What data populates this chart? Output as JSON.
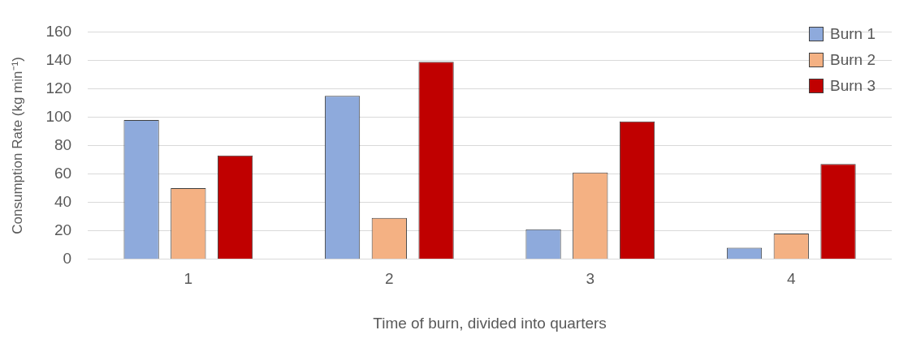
{
  "chart_data": {
    "type": "bar",
    "xlabel": "Time of burn, divided into quarters",
    "ylabel": "Consumption Rate (kg min⁻¹)",
    "categories": [
      "1",
      "2",
      "3",
      "4"
    ],
    "series": [
      {
        "name": "Burn 1",
        "color": "#8eaadc",
        "values": [
          98,
          115,
          21,
          8
        ]
      },
      {
        "name": "Burn 2",
        "color": "#f4b183",
        "values": [
          50,
          29,
          61,
          18
        ]
      },
      {
        "name": "Burn 3",
        "color": "#c00000",
        "values": [
          73,
          139,
          97,
          67
        ]
      }
    ],
    "ylim": [
      0,
      160
    ],
    "yticks": [
      0,
      20,
      40,
      60,
      80,
      100,
      120,
      140,
      160
    ],
    "grid": "y",
    "legend": "top right"
  }
}
